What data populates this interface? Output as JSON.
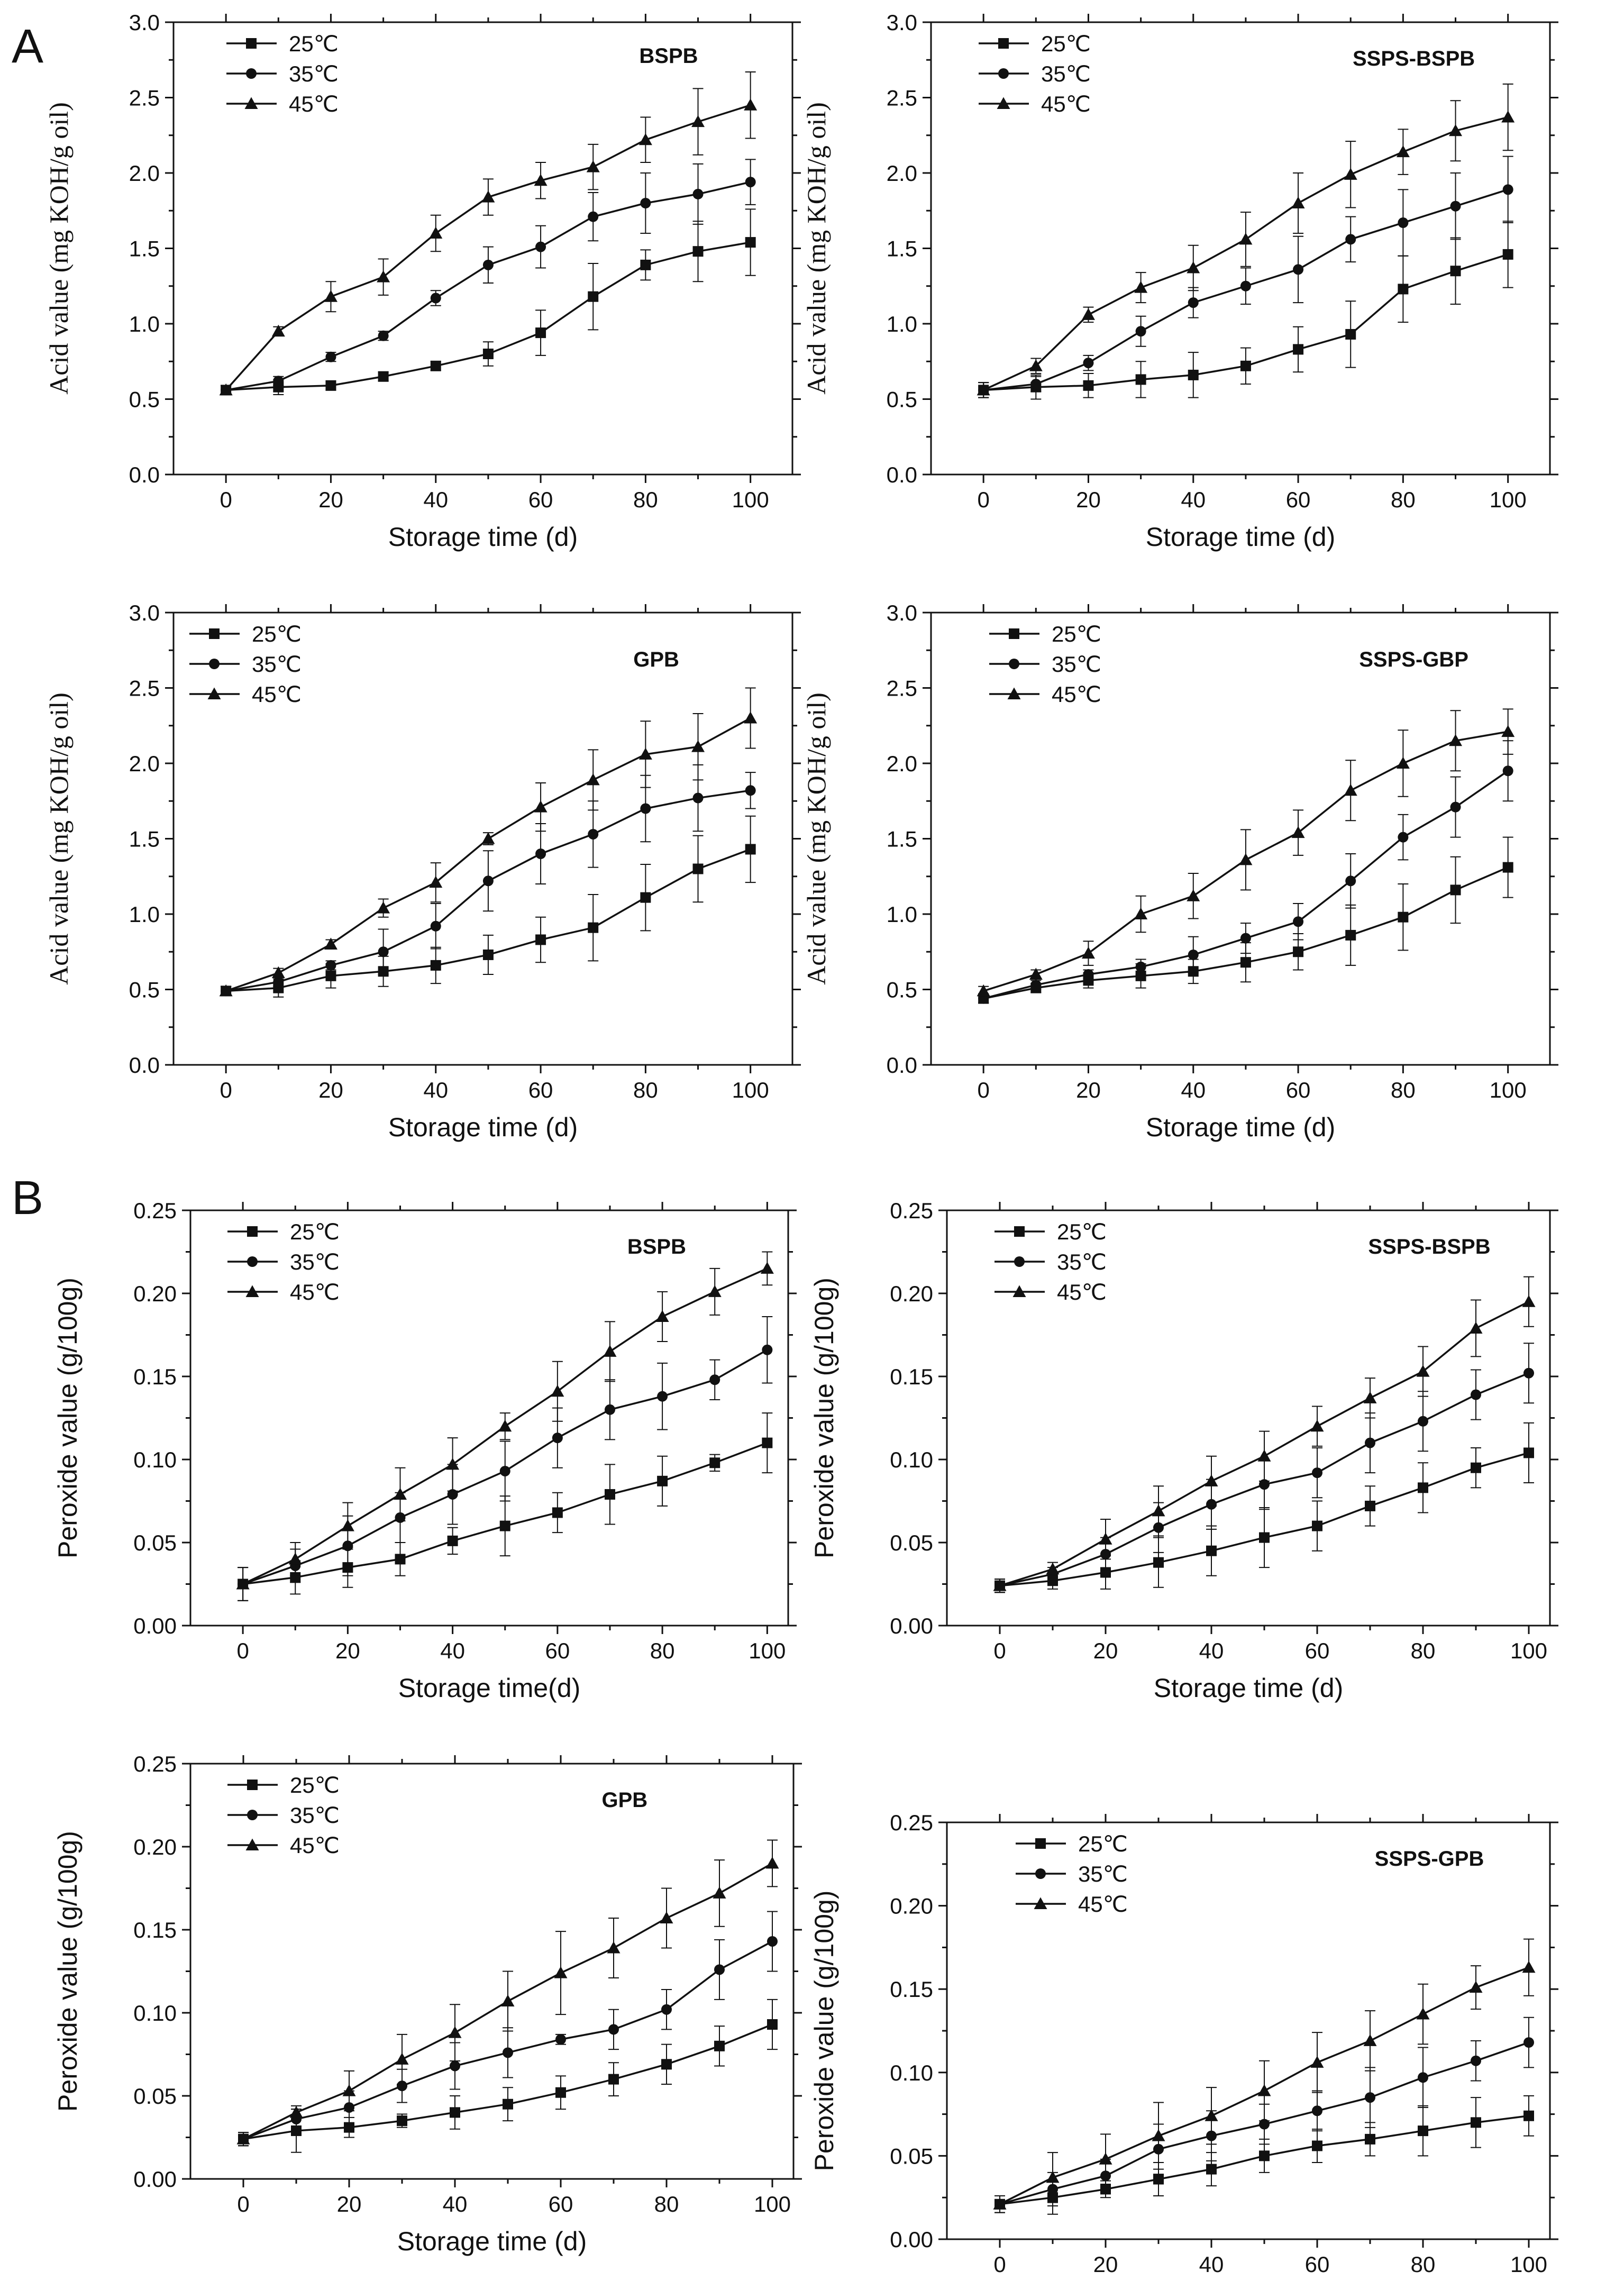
{
  "panels": {
    "A": "A",
    "B": "B"
  },
  "chart_data": [
    {
      "type": "line",
      "group": "A",
      "title": "BSPB",
      "xlabel": "Storage time (d)",
      "ylabel": "Acid value (mg KOH/g oil)",
      "xlim": [
        -10,
        108
      ],
      "ylim": [
        0,
        3.0
      ],
      "xticks": [
        "0",
        "20",
        "40",
        "60",
        "80",
        "100"
      ],
      "yticks": [
        "0.0",
        "0.5",
        "1.0",
        "1.5",
        "2.0",
        "2.5",
        "3.0"
      ],
      "x": [
        0,
        10,
        20,
        30,
        40,
        50,
        60,
        70,
        80,
        90,
        100
      ],
      "series": [
        {
          "name": "25℃",
          "marker": "square",
          "values": [
            0.56,
            0.58,
            0.59,
            0.65,
            0.72,
            0.8,
            0.94,
            1.18,
            1.39,
            1.48,
            1.54
          ],
          "errors": [
            0.03,
            0.05,
            0.03,
            0.03,
            0.03,
            0.08,
            0.15,
            0.22,
            0.1,
            0.2,
            0.22
          ]
        },
        {
          "name": "35℃",
          "marker": "circle",
          "values": [
            0.56,
            0.62,
            0.78,
            0.92,
            1.17,
            1.39,
            1.51,
            1.71,
            1.8,
            1.86,
            1.94
          ],
          "errors": [
            0.03,
            0.03,
            0.03,
            0.03,
            0.05,
            0.12,
            0.14,
            0.16,
            0.2,
            0.2,
            0.15
          ]
        },
        {
          "name": "45℃",
          "marker": "triangle",
          "values": [
            0.56,
            0.95,
            1.18,
            1.31,
            1.6,
            1.84,
            1.95,
            2.04,
            2.22,
            2.34,
            2.45
          ],
          "errors": [
            0.03,
            0.03,
            0.1,
            0.12,
            0.12,
            0.12,
            0.12,
            0.15,
            0.15,
            0.22,
            0.22
          ]
        }
      ]
    },
    {
      "type": "line",
      "group": "A",
      "title": "SSPS-BSPB",
      "xlabel": "Storage time (d)",
      "ylabel": "Acid value (mg KOH/g oil)",
      "xlim": [
        -10,
        108
      ],
      "ylim": [
        0,
        3.0
      ],
      "xticks": [
        "0",
        "20",
        "40",
        "60",
        "80",
        "100"
      ],
      "yticks": [
        "0.0",
        "0.5",
        "1.0",
        "1.5",
        "2.0",
        "2.5",
        "3.0"
      ],
      "x": [
        0,
        10,
        20,
        30,
        40,
        50,
        60,
        70,
        80,
        90,
        100
      ],
      "series": [
        {
          "name": "25℃",
          "marker": "square",
          "values": [
            0.56,
            0.58,
            0.59,
            0.63,
            0.66,
            0.72,
            0.83,
            0.93,
            1.23,
            1.35,
            1.46
          ],
          "errors": [
            0.05,
            0.08,
            0.08,
            0.12,
            0.15,
            0.12,
            0.15,
            0.22,
            0.22,
            0.22,
            0.22
          ]
        },
        {
          "name": "35℃",
          "marker": "circle",
          "values": [
            0.56,
            0.6,
            0.74,
            0.95,
            1.14,
            1.25,
            1.36,
            1.56,
            1.67,
            1.78,
            1.89
          ],
          "errors": [
            0.05,
            0.05,
            0.05,
            0.1,
            0.1,
            0.12,
            0.22,
            0.15,
            0.22,
            0.22,
            0.22
          ]
        },
        {
          "name": "45℃",
          "marker": "triangle",
          "values": [
            0.56,
            0.72,
            1.06,
            1.24,
            1.37,
            1.56,
            1.8,
            1.99,
            2.14,
            2.28,
            2.37
          ],
          "errors": [
            0.05,
            0.05,
            0.05,
            0.1,
            0.15,
            0.18,
            0.2,
            0.22,
            0.15,
            0.2,
            0.22
          ]
        }
      ]
    },
    {
      "type": "line",
      "group": "A",
      "title": "GPB",
      "xlabel": "Storage time (d)",
      "ylabel": "Acid value (mg KOH/g oil)",
      "xlim": [
        -10,
        108
      ],
      "ylim": [
        0,
        3.0
      ],
      "xticks": [
        "0",
        "20",
        "40",
        "60",
        "80",
        "100"
      ],
      "yticks": [
        "0.0",
        "0.5",
        "1.0",
        "1.5",
        "2.0",
        "2.5",
        "3.0"
      ],
      "x": [
        0,
        10,
        20,
        30,
        40,
        50,
        60,
        70,
        80,
        90,
        100
      ],
      "series": [
        {
          "name": "25℃",
          "marker": "square",
          "values": [
            0.49,
            0.51,
            0.59,
            0.62,
            0.66,
            0.73,
            0.83,
            0.91,
            1.11,
            1.3,
            1.43
          ],
          "errors": [
            0.03,
            0.06,
            0.08,
            0.1,
            0.12,
            0.13,
            0.15,
            0.22,
            0.22,
            0.22,
            0.22
          ]
        },
        {
          "name": "35℃",
          "marker": "circle",
          "values": [
            0.49,
            0.55,
            0.66,
            0.75,
            0.92,
            1.22,
            1.4,
            1.53,
            1.7,
            1.77,
            1.82
          ],
          "errors": [
            0.03,
            0.03,
            0.03,
            0.15,
            0.15,
            0.2,
            0.2,
            0.22,
            0.22,
            0.22,
            0.12
          ]
        },
        {
          "name": "45℃",
          "marker": "triangle",
          "values": [
            0.49,
            0.61,
            0.8,
            1.04,
            1.21,
            1.5,
            1.71,
            1.89,
            2.06,
            2.11,
            2.3
          ],
          "errors": [
            0.03,
            0.03,
            0.03,
            0.06,
            0.13,
            0.04,
            0.16,
            0.2,
            0.22,
            0.22,
            0.2
          ]
        }
      ]
    },
    {
      "type": "line",
      "group": "A",
      "title": "SSPS-GBP",
      "xlabel": "Storage time (d)",
      "ylabel": "Acid value (mg KOH/g oil)",
      "xlim": [
        -10,
        108
      ],
      "ylim": [
        0,
        3.0
      ],
      "xticks": [
        "0",
        "20",
        "40",
        "60",
        "80",
        "100"
      ],
      "yticks": [
        "0.0",
        "0.5",
        "1.0",
        "1.5",
        "2.0",
        "2.5",
        "3.0"
      ],
      "x": [
        0,
        10,
        20,
        30,
        40,
        50,
        60,
        70,
        80,
        90,
        100
      ],
      "series": [
        {
          "name": "25℃",
          "marker": "square",
          "values": [
            0.44,
            0.51,
            0.56,
            0.59,
            0.62,
            0.68,
            0.75,
            0.86,
            0.98,
            1.16,
            1.31
          ],
          "errors": [
            0.03,
            0.03,
            0.05,
            0.08,
            0.08,
            0.13,
            0.12,
            0.2,
            0.22,
            0.22,
            0.2
          ]
        },
        {
          "name": "35℃",
          "marker": "circle",
          "values": [
            0.44,
            0.53,
            0.6,
            0.65,
            0.73,
            0.84,
            0.95,
            1.22,
            1.51,
            1.71,
            1.95
          ],
          "errors": [
            0.03,
            0.03,
            0.03,
            0.05,
            0.12,
            0.1,
            0.12,
            0.18,
            0.15,
            0.2,
            0.2
          ]
        },
        {
          "name": "45℃",
          "marker": "triangle",
          "values": [
            0.49,
            0.6,
            0.74,
            1.0,
            1.12,
            1.36,
            1.54,
            1.82,
            2.0,
            2.15,
            2.21
          ],
          "errors": [
            0.03,
            0.03,
            0.08,
            0.12,
            0.15,
            0.2,
            0.15,
            0.2,
            0.22,
            0.2,
            0.15
          ]
        }
      ]
    },
    {
      "type": "line",
      "group": "B",
      "title": "BSPB",
      "xlabel": "Storage time(d)",
      "ylabel": "Peroxide value (g/100g)",
      "xlim": [
        -10,
        104
      ],
      "ylim": [
        0,
        0.25
      ],
      "xticks": [
        "0",
        "20",
        "40",
        "60",
        "80",
        "100"
      ],
      "yticks": [
        "0.00",
        "0.05",
        "0.10",
        "0.15",
        "0.20",
        "0.25"
      ],
      "x": [
        0,
        10,
        20,
        30,
        40,
        50,
        60,
        70,
        80,
        90,
        100
      ],
      "series": [
        {
          "name": "25℃",
          "marker": "square",
          "values": [
            0.025,
            0.029,
            0.035,
            0.04,
            0.051,
            0.06,
            0.068,
            0.079,
            0.087,
            0.098,
            0.11
          ],
          "errors": [
            0.01,
            0.01,
            0.012,
            0.01,
            0.008,
            0.018,
            0.012,
            0.018,
            0.015,
            0.005,
            0.018
          ]
        },
        {
          "name": "35℃",
          "marker": "circle",
          "values": [
            0.025,
            0.036,
            0.048,
            0.065,
            0.079,
            0.093,
            0.113,
            0.13,
            0.138,
            0.148,
            0.166
          ],
          "errors": [
            0.01,
            0.01,
            0.018,
            0.015,
            0.018,
            0.018,
            0.018,
            0.018,
            0.02,
            0.012,
            0.02
          ]
        },
        {
          "name": "45℃",
          "marker": "triangle",
          "values": [
            0.025,
            0.04,
            0.06,
            0.079,
            0.097,
            0.12,
            0.141,
            0.165,
            0.186,
            0.201,
            0.215
          ],
          "errors": [
            0.01,
            0.01,
            0.014,
            0.016,
            0.016,
            0.008,
            0.018,
            0.018,
            0.015,
            0.014,
            0.01
          ]
        }
      ]
    },
    {
      "type": "line",
      "group": "B",
      "title": "SSPS-BSPB",
      "xlabel": "Storage time (d)",
      "ylabel": "Peroxide value (g/100g)",
      "xlim": [
        -10,
        104
      ],
      "ylim": [
        0,
        0.25
      ],
      "xticks": [
        "0",
        "20",
        "40",
        "60",
        "80",
        "100"
      ],
      "yticks": [
        "0.00",
        "0.05",
        "0.10",
        "0.15",
        "0.20",
        "0.25"
      ],
      "x": [
        0,
        10,
        20,
        30,
        40,
        50,
        60,
        70,
        80,
        90,
        100
      ],
      "series": [
        {
          "name": "25℃",
          "marker": "square",
          "values": [
            0.024,
            0.027,
            0.032,
            0.038,
            0.045,
            0.053,
            0.06,
            0.072,
            0.083,
            0.095,
            0.104
          ],
          "errors": [
            0.004,
            0.005,
            0.01,
            0.015,
            0.015,
            0.018,
            0.015,
            0.012,
            0.015,
            0.012,
            0.018
          ]
        },
        {
          "name": "35℃",
          "marker": "circle",
          "values": [
            0.024,
            0.031,
            0.043,
            0.059,
            0.073,
            0.085,
            0.092,
            0.11,
            0.123,
            0.139,
            0.152
          ],
          "errors": [
            0.004,
            0.004,
            0.01,
            0.015,
            0.015,
            0.015,
            0.015,
            0.018,
            0.018,
            0.015,
            0.018
          ]
        },
        {
          "name": "45℃",
          "marker": "triangle",
          "values": [
            0.024,
            0.034,
            0.052,
            0.069,
            0.087,
            0.102,
            0.12,
            0.137,
            0.153,
            0.179,
            0.195
          ],
          "errors": [
            0.004,
            0.004,
            0.012,
            0.015,
            0.015,
            0.015,
            0.012,
            0.012,
            0.015,
            0.017,
            0.015
          ]
        }
      ]
    },
    {
      "type": "line",
      "group": "B",
      "title": "GPB",
      "xlabel": "Storage time (d)",
      "ylabel": "Peroxide value (g/100g)",
      "xlim": [
        -10,
        104
      ],
      "ylim": [
        0,
        0.25
      ],
      "xticks": [
        "0",
        "20",
        "40",
        "60",
        "80",
        "100"
      ],
      "yticks": [
        "0.00",
        "0.05",
        "0.10",
        "0.15",
        "0.20",
        "0.25"
      ],
      "x": [
        0,
        10,
        20,
        30,
        40,
        50,
        60,
        70,
        80,
        90,
        100
      ],
      "series": [
        {
          "name": "25℃",
          "marker": "square",
          "values": [
            0.024,
            0.029,
            0.031,
            0.035,
            0.04,
            0.045,
            0.052,
            0.06,
            0.069,
            0.08,
            0.093
          ],
          "errors": [
            0.004,
            0.013,
            0.006,
            0.004,
            0.01,
            0.01,
            0.01,
            0.01,
            0.012,
            0.012,
            0.015
          ]
        },
        {
          "name": "35℃",
          "marker": "circle",
          "values": [
            0.024,
            0.036,
            0.043,
            0.056,
            0.068,
            0.076,
            0.084,
            0.09,
            0.102,
            0.126,
            0.143
          ],
          "errors": [
            0.004,
            0.006,
            0.01,
            0.01,
            0.014,
            0.015,
            0.003,
            0.012,
            0.012,
            0.018,
            0.018
          ]
        },
        {
          "name": "45℃",
          "marker": "triangle",
          "values": [
            0.024,
            0.04,
            0.053,
            0.072,
            0.088,
            0.107,
            0.124,
            0.139,
            0.157,
            0.172,
            0.19
          ],
          "errors": [
            0.004,
            0.004,
            0.012,
            0.015,
            0.017,
            0.018,
            0.025,
            0.018,
            0.018,
            0.02,
            0.014
          ]
        }
      ]
    },
    {
      "type": "line",
      "group": "B",
      "title": "SSPS-GPB",
      "xlabel": "Storage time (d)",
      "ylabel": "Peroxide value (g/100g)",
      "xlim": [
        -10,
        104
      ],
      "ylim": [
        0,
        0.25
      ],
      "xticks": [
        "0",
        "20",
        "40",
        "60",
        "80",
        "100"
      ],
      "yticks": [
        "0.00",
        "0.05",
        "0.10",
        "0.15",
        "0.20",
        "0.25"
      ],
      "x": [
        0,
        10,
        20,
        30,
        40,
        50,
        60,
        70,
        80,
        90,
        100
      ],
      "series": [
        {
          "name": "25℃",
          "marker": "square",
          "values": [
            0.021,
            0.025,
            0.03,
            0.036,
            0.042,
            0.05,
            0.056,
            0.06,
            0.065,
            0.07,
            0.074
          ],
          "errors": [
            0.005,
            0.01,
            0.005,
            0.01,
            0.01,
            0.01,
            0.01,
            0.01,
            0.015,
            0.015,
            0.012
          ]
        },
        {
          "name": "35℃",
          "marker": "circle",
          "values": [
            0.021,
            0.03,
            0.038,
            0.054,
            0.062,
            0.069,
            0.077,
            0.085,
            0.097,
            0.107,
            0.118
          ],
          "errors": [
            0.005,
            0.01,
            0.01,
            0.015,
            0.015,
            0.012,
            0.012,
            0.018,
            0.018,
            0.012,
            0.015
          ]
        },
        {
          "name": "45℃",
          "marker": "triangle",
          "values": [
            0.021,
            0.037,
            0.048,
            0.062,
            0.074,
            0.089,
            0.106,
            0.119,
            0.135,
            0.151,
            0.163
          ],
          "errors": [
            0.005,
            0.015,
            0.015,
            0.02,
            0.017,
            0.018,
            0.018,
            0.018,
            0.018,
            0.013,
            0.017
          ]
        }
      ]
    }
  ]
}
